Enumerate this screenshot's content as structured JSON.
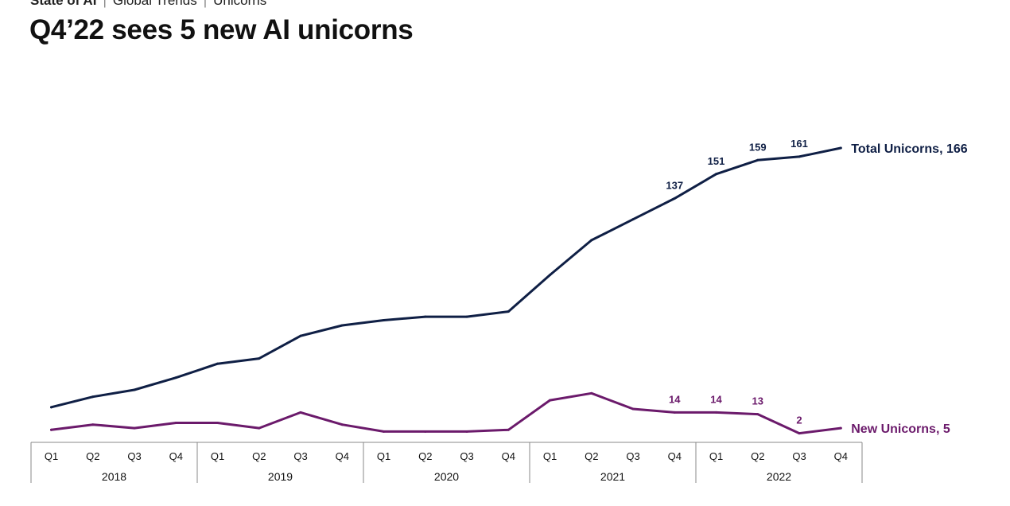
{
  "breadcrumb": [
    "State of AI",
    "Global Trends",
    "Unicorns"
  ],
  "title": "Q4’22 sees 5 new AI unicorns",
  "colors": {
    "total": "#0f1f45",
    "new": "#6b1a6b",
    "axis": "#888888"
  },
  "chart_data": {
    "type": "line",
    "years": [
      "2018",
      "2019",
      "2020",
      "2021",
      "2022"
    ],
    "categories": [
      "Q1",
      "Q2",
      "Q3",
      "Q4",
      "Q1",
      "Q2",
      "Q3",
      "Q4",
      "Q1",
      "Q2",
      "Q3",
      "Q4",
      "Q1",
      "Q2",
      "Q3",
      "Q4",
      "Q1",
      "Q2",
      "Q3",
      "Q4"
    ],
    "ylim": [
      0,
      175
    ],
    "series": [
      {
        "name": "Total Unicorns",
        "end_label": "Total Unicorns, 166",
        "values": [
          17,
          23,
          27,
          34,
          42,
          45,
          58,
          64,
          67,
          69,
          69,
          72,
          93,
          113,
          125,
          137,
          151,
          159,
          161,
          166
        ],
        "data_labels": [
          null,
          null,
          null,
          null,
          null,
          null,
          null,
          null,
          null,
          null,
          null,
          null,
          null,
          null,
          null,
          "137",
          "151",
          "159",
          "161",
          null
        ]
      },
      {
        "name": "New Unicorns",
        "end_label": "New Unicorns, 5",
        "values": [
          4,
          7,
          5,
          8,
          8,
          5,
          14,
          7,
          3,
          3,
          3,
          4,
          21,
          25,
          16,
          14,
          14,
          13,
          2,
          5
        ],
        "data_labels": [
          null,
          null,
          null,
          null,
          null,
          null,
          null,
          null,
          null,
          null,
          null,
          null,
          null,
          null,
          null,
          "14",
          "14",
          "13",
          "2",
          null
        ]
      }
    ],
    "grid": false,
    "legend": "end-of-line labels"
  }
}
